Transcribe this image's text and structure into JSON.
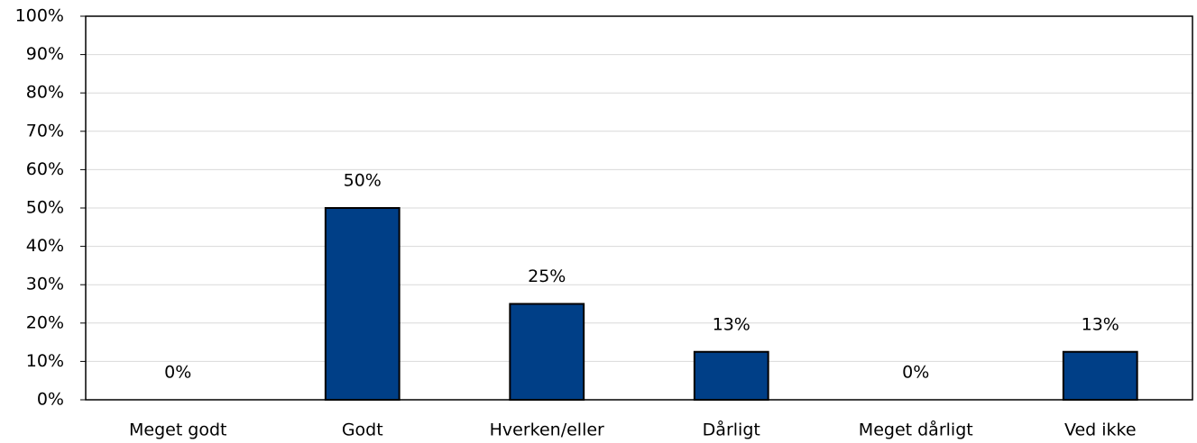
{
  "chart_data": {
    "type": "bar",
    "categories": [
      "Meget godt",
      "Godt",
      "Hverken/eller",
      "Dårligt",
      "Meget dårligt",
      "Ved ikke"
    ],
    "values": [
      0,
      50,
      25,
      12.5,
      0,
      12.5
    ],
    "value_labels": [
      "0%",
      "50%",
      "25%",
      "13%",
      "0%",
      "13%"
    ],
    "color": "#003f87",
    "ylim": [
      0,
      100
    ],
    "yticks": [
      {
        "value": 0,
        "label": "0%"
      },
      {
        "value": 10,
        "label": "10%"
      },
      {
        "value": 20,
        "label": "20%"
      },
      {
        "value": 30,
        "label": "30%"
      },
      {
        "value": 40,
        "label": "40%"
      },
      {
        "value": 50,
        "label": "50%"
      },
      {
        "value": 60,
        "label": "60%"
      },
      {
        "value": 70,
        "label": "70%"
      },
      {
        "value": 80,
        "label": "80%"
      },
      {
        "value": 90,
        "label": "90%"
      },
      {
        "value": 100,
        "label": "100%"
      }
    ],
    "grid": true
  }
}
